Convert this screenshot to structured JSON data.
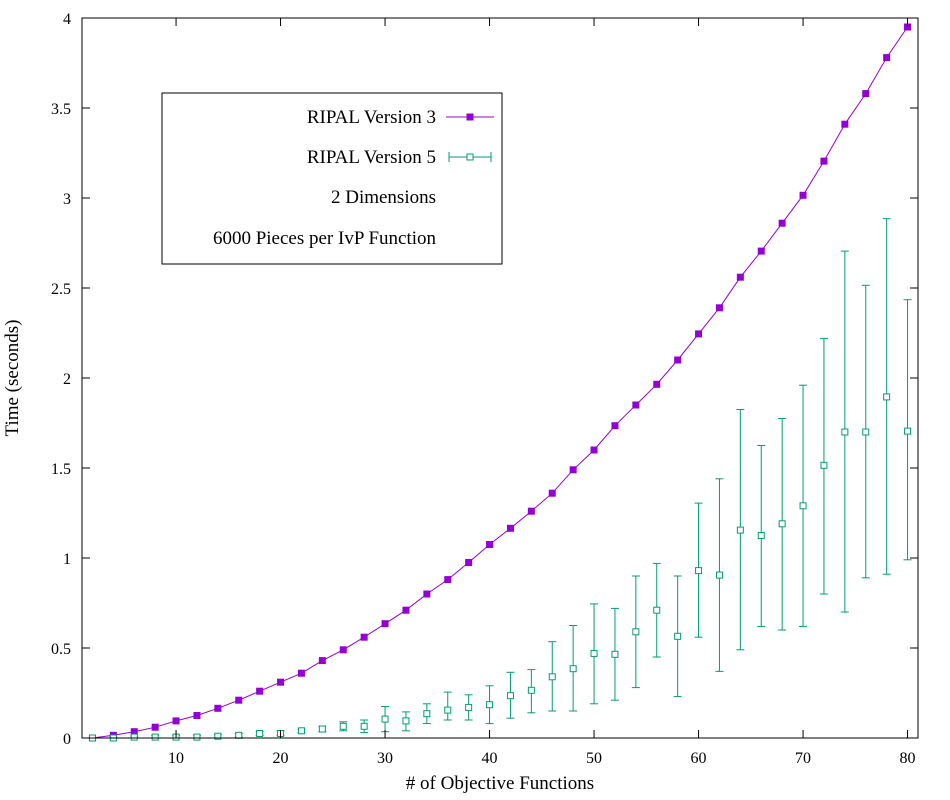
{
  "chart_data": {
    "type": "line",
    "title": "",
    "xlabel": "# of Objective Functions",
    "ylabel": "Time (seconds)",
    "xlim": [
      1,
      81
    ],
    "ylim": [
      0,
      4
    ],
    "x_ticks": [
      10,
      20,
      30,
      40,
      50,
      60,
      70,
      80
    ],
    "x_tick_labels": [
      "10",
      "20",
      "30",
      "40",
      "50",
      "60",
      "70",
      "80"
    ],
    "y_ticks": [
      0,
      0.5,
      1,
      1.5,
      2,
      2.5,
      3,
      3.5,
      4
    ],
    "y_tick_labels": [
      "0",
      "0.5",
      "1",
      "1.5",
      "2",
      "2.5",
      "3",
      "3.5",
      "4"
    ],
    "grid": false,
    "legend_position": "top-left",
    "legend_notes": [
      "2 Dimensions",
      "6000 Pieces per IvP Function"
    ],
    "x": [
      2,
      4,
      6,
      8,
      10,
      12,
      14,
      16,
      18,
      20,
      22,
      24,
      26,
      28,
      30,
      32,
      34,
      36,
      38,
      40,
      42,
      44,
      46,
      48,
      50,
      52,
      54,
      56,
      58,
      60,
      62,
      64,
      66,
      68,
      70,
      72,
      74,
      76,
      78,
      80
    ],
    "series": [
      {
        "name": "RIPAL Version 3",
        "color": "#9400d3",
        "marker": "filled-square",
        "values": [
          0.0,
          0.015,
          0.035,
          0.06,
          0.095,
          0.125,
          0.165,
          0.21,
          0.26,
          0.31,
          0.36,
          0.43,
          0.49,
          0.56,
          0.635,
          0.71,
          0.8,
          0.88,
          0.975,
          1.075,
          1.165,
          1.26,
          1.36,
          1.49,
          1.6,
          1.735,
          1.85,
          1.965,
          2.1,
          2.245,
          2.39,
          2.56,
          2.705,
          2.86,
          3.015,
          3.205,
          3.41,
          3.58,
          3.78,
          3.95
        ]
      },
      {
        "name": "RIPAL Version 5",
        "color": "#009e73",
        "marker": "open-square",
        "values": [
          0.0,
          0.0,
          0.005,
          0.005,
          0.005,
          0.005,
          0.01,
          0.015,
          0.025,
          0.025,
          0.04,
          0.05,
          0.065,
          0.065,
          0.105,
          0.095,
          0.135,
          0.155,
          0.17,
          0.185,
          0.235,
          0.265,
          0.34,
          0.385,
          0.47,
          0.465,
          0.59,
          0.71,
          0.565,
          0.93,
          0.905,
          1.155,
          1.125,
          1.19,
          1.29,
          1.515,
          1.7,
          1.7,
          1.895,
          1.705
        ],
        "lower": [
          0.0,
          0.0,
          0.0,
          0.0,
          0.0,
          0.0,
          0.0,
          0.005,
          0.015,
          0.015,
          0.03,
          0.035,
          0.04,
          0.03,
          0.035,
          0.04,
          0.08,
          0.1,
          0.1,
          0.08,
          0.11,
          0.14,
          0.15,
          0.15,
          0.19,
          0.21,
          0.28,
          0.45,
          0.23,
          0.56,
          0.37,
          0.49,
          0.62,
          0.6,
          0.62,
          0.8,
          0.7,
          0.89,
          0.91,
          0.99
        ],
        "upper": [
          0.0,
          0.005,
          0.01,
          0.015,
          0.015,
          0.015,
          0.02,
          0.025,
          0.035,
          0.04,
          0.05,
          0.065,
          0.09,
          0.1,
          0.175,
          0.145,
          0.19,
          0.255,
          0.24,
          0.29,
          0.365,
          0.38,
          0.535,
          0.625,
          0.745,
          0.72,
          0.9,
          0.97,
          0.9,
          1.305,
          1.44,
          1.825,
          1.625,
          1.775,
          1.96,
          2.22,
          2.705,
          2.515,
          2.885,
          2.435
        ]
      }
    ]
  }
}
